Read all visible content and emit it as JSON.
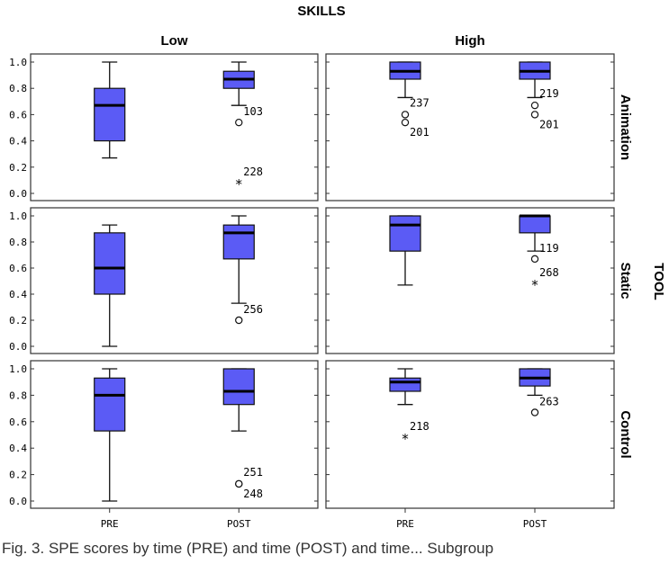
{
  "chart_data": {
    "type": "boxplot",
    "title": "SKILLS",
    "facet_col_label": "SKILLS",
    "facet_row_label": "TOOL",
    "col_facets": [
      "Low",
      "High"
    ],
    "row_facets": [
      "Animation",
      "Static",
      "Control"
    ],
    "categories": [
      "PRE",
      "POST"
    ],
    "ylim": [
      0,
      1.0
    ],
    "yticks": [
      "0.0",
      "0.2",
      "0.4",
      "0.6",
      "0.8",
      "1.0"
    ],
    "grid": false,
    "box_color": "#5b5bf5",
    "panels": [
      {
        "row": "Animation",
        "col": "Low",
        "boxes": [
          {
            "cat": "PRE",
            "min": 0.27,
            "q1": 0.4,
            "median": 0.67,
            "q3": 0.8,
            "max": 1.0,
            "outliers": [],
            "extremes": []
          },
          {
            "cat": "POST",
            "min": 0.67,
            "q1": 0.8,
            "median": 0.87,
            "q3": 0.93,
            "max": 1.0,
            "outliers": [
              {
                "value": 0.54,
                "label": "103"
              }
            ],
            "extremes": [
              {
                "value": 0.07,
                "label": "228"
              }
            ]
          }
        ]
      },
      {
        "row": "Animation",
        "col": "High",
        "boxes": [
          {
            "cat": "PRE",
            "min": 0.73,
            "q1": 0.87,
            "median": 0.93,
            "q3": 1.0,
            "max": 1.0,
            "outliers": [
              {
                "value": 0.6,
                "label": "237"
              },
              {
                "value": 0.54,
                "label": "201"
              }
            ],
            "extremes": []
          },
          {
            "cat": "POST",
            "min": 0.73,
            "q1": 0.87,
            "median": 0.93,
            "q3": 1.0,
            "max": 1.0,
            "outliers": [
              {
                "value": 0.67,
                "label": "219"
              },
              {
                "value": 0.6,
                "label": "201"
              }
            ],
            "extremes": []
          }
        ]
      },
      {
        "row": "Static",
        "col": "Low",
        "boxes": [
          {
            "cat": "PRE",
            "min": 0.0,
            "q1": 0.4,
            "median": 0.6,
            "q3": 0.87,
            "max": 0.93,
            "outliers": [],
            "extremes": []
          },
          {
            "cat": "POST",
            "min": 0.33,
            "q1": 0.67,
            "median": 0.87,
            "q3": 0.93,
            "max": 1.0,
            "outliers": [
              {
                "value": 0.2,
                "label": "256"
              }
            ],
            "extremes": []
          }
        ]
      },
      {
        "row": "Static",
        "col": "High",
        "boxes": [
          {
            "cat": "PRE",
            "min": 0.47,
            "q1": 0.73,
            "median": 0.93,
            "q3": 1.0,
            "max": 1.0,
            "outliers": [],
            "extremes": []
          },
          {
            "cat": "POST",
            "min": 0.73,
            "q1": 0.87,
            "median": 1.0,
            "q3": 1.0,
            "max": 1.0,
            "outliers": [
              {
                "value": 0.67,
                "label": "119"
              }
            ],
            "extremes": [
              {
                "value": 0.47,
                "label": "268"
              }
            ]
          }
        ]
      },
      {
        "row": "Control",
        "col": "Low",
        "boxes": [
          {
            "cat": "PRE",
            "min": 0.0,
            "q1": 0.53,
            "median": 0.8,
            "q3": 0.93,
            "max": 1.0,
            "outliers": [],
            "extremes": []
          },
          {
            "cat": "POST",
            "min": 0.53,
            "q1": 0.73,
            "median": 0.83,
            "q3": 1.0,
            "max": 1.0,
            "outliers": [
              {
                "value": 0.13,
                "label": "251"
              },
              {
                "value": 0.13,
                "label": "248"
              }
            ],
            "extremes": []
          }
        ]
      },
      {
        "row": "Control",
        "col": "High",
        "boxes": [
          {
            "cat": "PRE",
            "min": 0.73,
            "q1": 0.83,
            "median": 0.9,
            "q3": 0.93,
            "max": 1.0,
            "outliers": [],
            "extremes": [
              {
                "value": 0.47,
                "label": "218"
              }
            ]
          },
          {
            "cat": "POST",
            "min": 0.8,
            "q1": 0.87,
            "median": 0.93,
            "q3": 1.0,
            "max": 1.0,
            "outliers": [
              {
                "value": 0.67,
                "label": "263"
              }
            ],
            "extremes": []
          }
        ]
      }
    ]
  },
  "caption": "Fig. 3. SPE scores by time (PRE) and time (POST) and time... Subgroup"
}
